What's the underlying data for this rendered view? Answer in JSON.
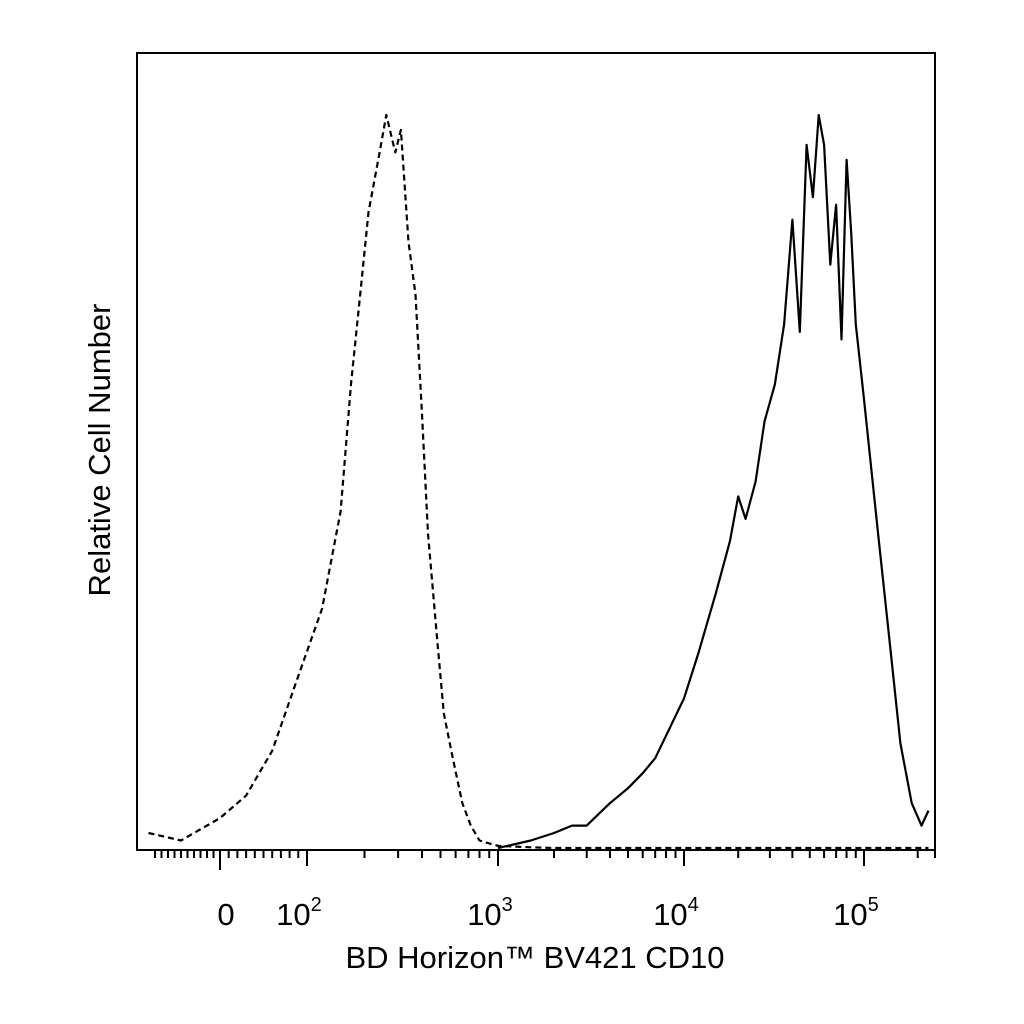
{
  "chart_data": {
    "type": "line",
    "xlabel": "BD Horizon™ BV421 CD10",
    "ylabel": "Relative Cell Number",
    "xscale": "biexponential",
    "xlim": [
      -120,
      250000
    ],
    "ylim": [
      0,
      1.0
    ],
    "grid": false,
    "legend": "none",
    "x_ticks": [
      {
        "value": 0,
        "base": "0",
        "exp": ""
      },
      {
        "value": 100,
        "base": "10",
        "exp": "2"
      },
      {
        "value": 1000,
        "base": "10",
        "exp": "3"
      },
      {
        "value": 10000,
        "base": "10",
        "exp": "4"
      },
      {
        "value": 100000,
        "base": "10",
        "exp": "5"
      }
    ],
    "series": [
      {
        "style": "dashed",
        "x": [
          -110,
          -60,
          0,
          30,
          60,
          90,
          120,
          150,
          170,
          190,
          210,
          240,
          260,
          290,
          310,
          340,
          370,
          400,
          430,
          480,
          520,
          580,
          650,
          720,
          800,
          900,
          1000,
          1200,
          1500,
          2000,
          5000,
          20000,
          100000,
          230000
        ],
        "y": [
          0.02,
          0.01,
          0.04,
          0.07,
          0.13,
          0.23,
          0.32,
          0.45,
          0.62,
          0.74,
          0.85,
          0.93,
          0.98,
          0.93,
          0.96,
          0.81,
          0.74,
          0.58,
          0.42,
          0.28,
          0.18,
          0.12,
          0.06,
          0.03,
          0.01,
          0.006,
          0.003,
          0.002,
          0.001,
          0.0,
          0.0,
          0.0,
          0.0,
          0.0
        ]
      },
      {
        "style": "solid",
        "x": [
          1000,
          1500,
          2000,
          2500,
          3000,
          4000,
          5000,
          6000,
          7000,
          8000,
          10000,
          12000,
          15000,
          18000,
          20000,
          22000,
          25000,
          28000,
          32000,
          36000,
          40000,
          44000,
          48000,
          52000,
          56000,
          60000,
          65000,
          70000,
          75000,
          80000,
          85000,
          90000,
          100000,
          120000,
          140000,
          160000,
          185000,
          210000,
          230000
        ],
        "y": [
          0.0,
          0.01,
          0.02,
          0.03,
          0.03,
          0.06,
          0.08,
          0.1,
          0.12,
          0.15,
          0.2,
          0.26,
          0.34,
          0.41,
          0.47,
          0.44,
          0.49,
          0.57,
          0.62,
          0.7,
          0.84,
          0.69,
          0.94,
          0.87,
          0.98,
          0.94,
          0.78,
          0.86,
          0.68,
          0.92,
          0.82,
          0.7,
          0.6,
          0.42,
          0.27,
          0.14,
          0.06,
          0.03,
          0.05
        ]
      }
    ]
  }
}
